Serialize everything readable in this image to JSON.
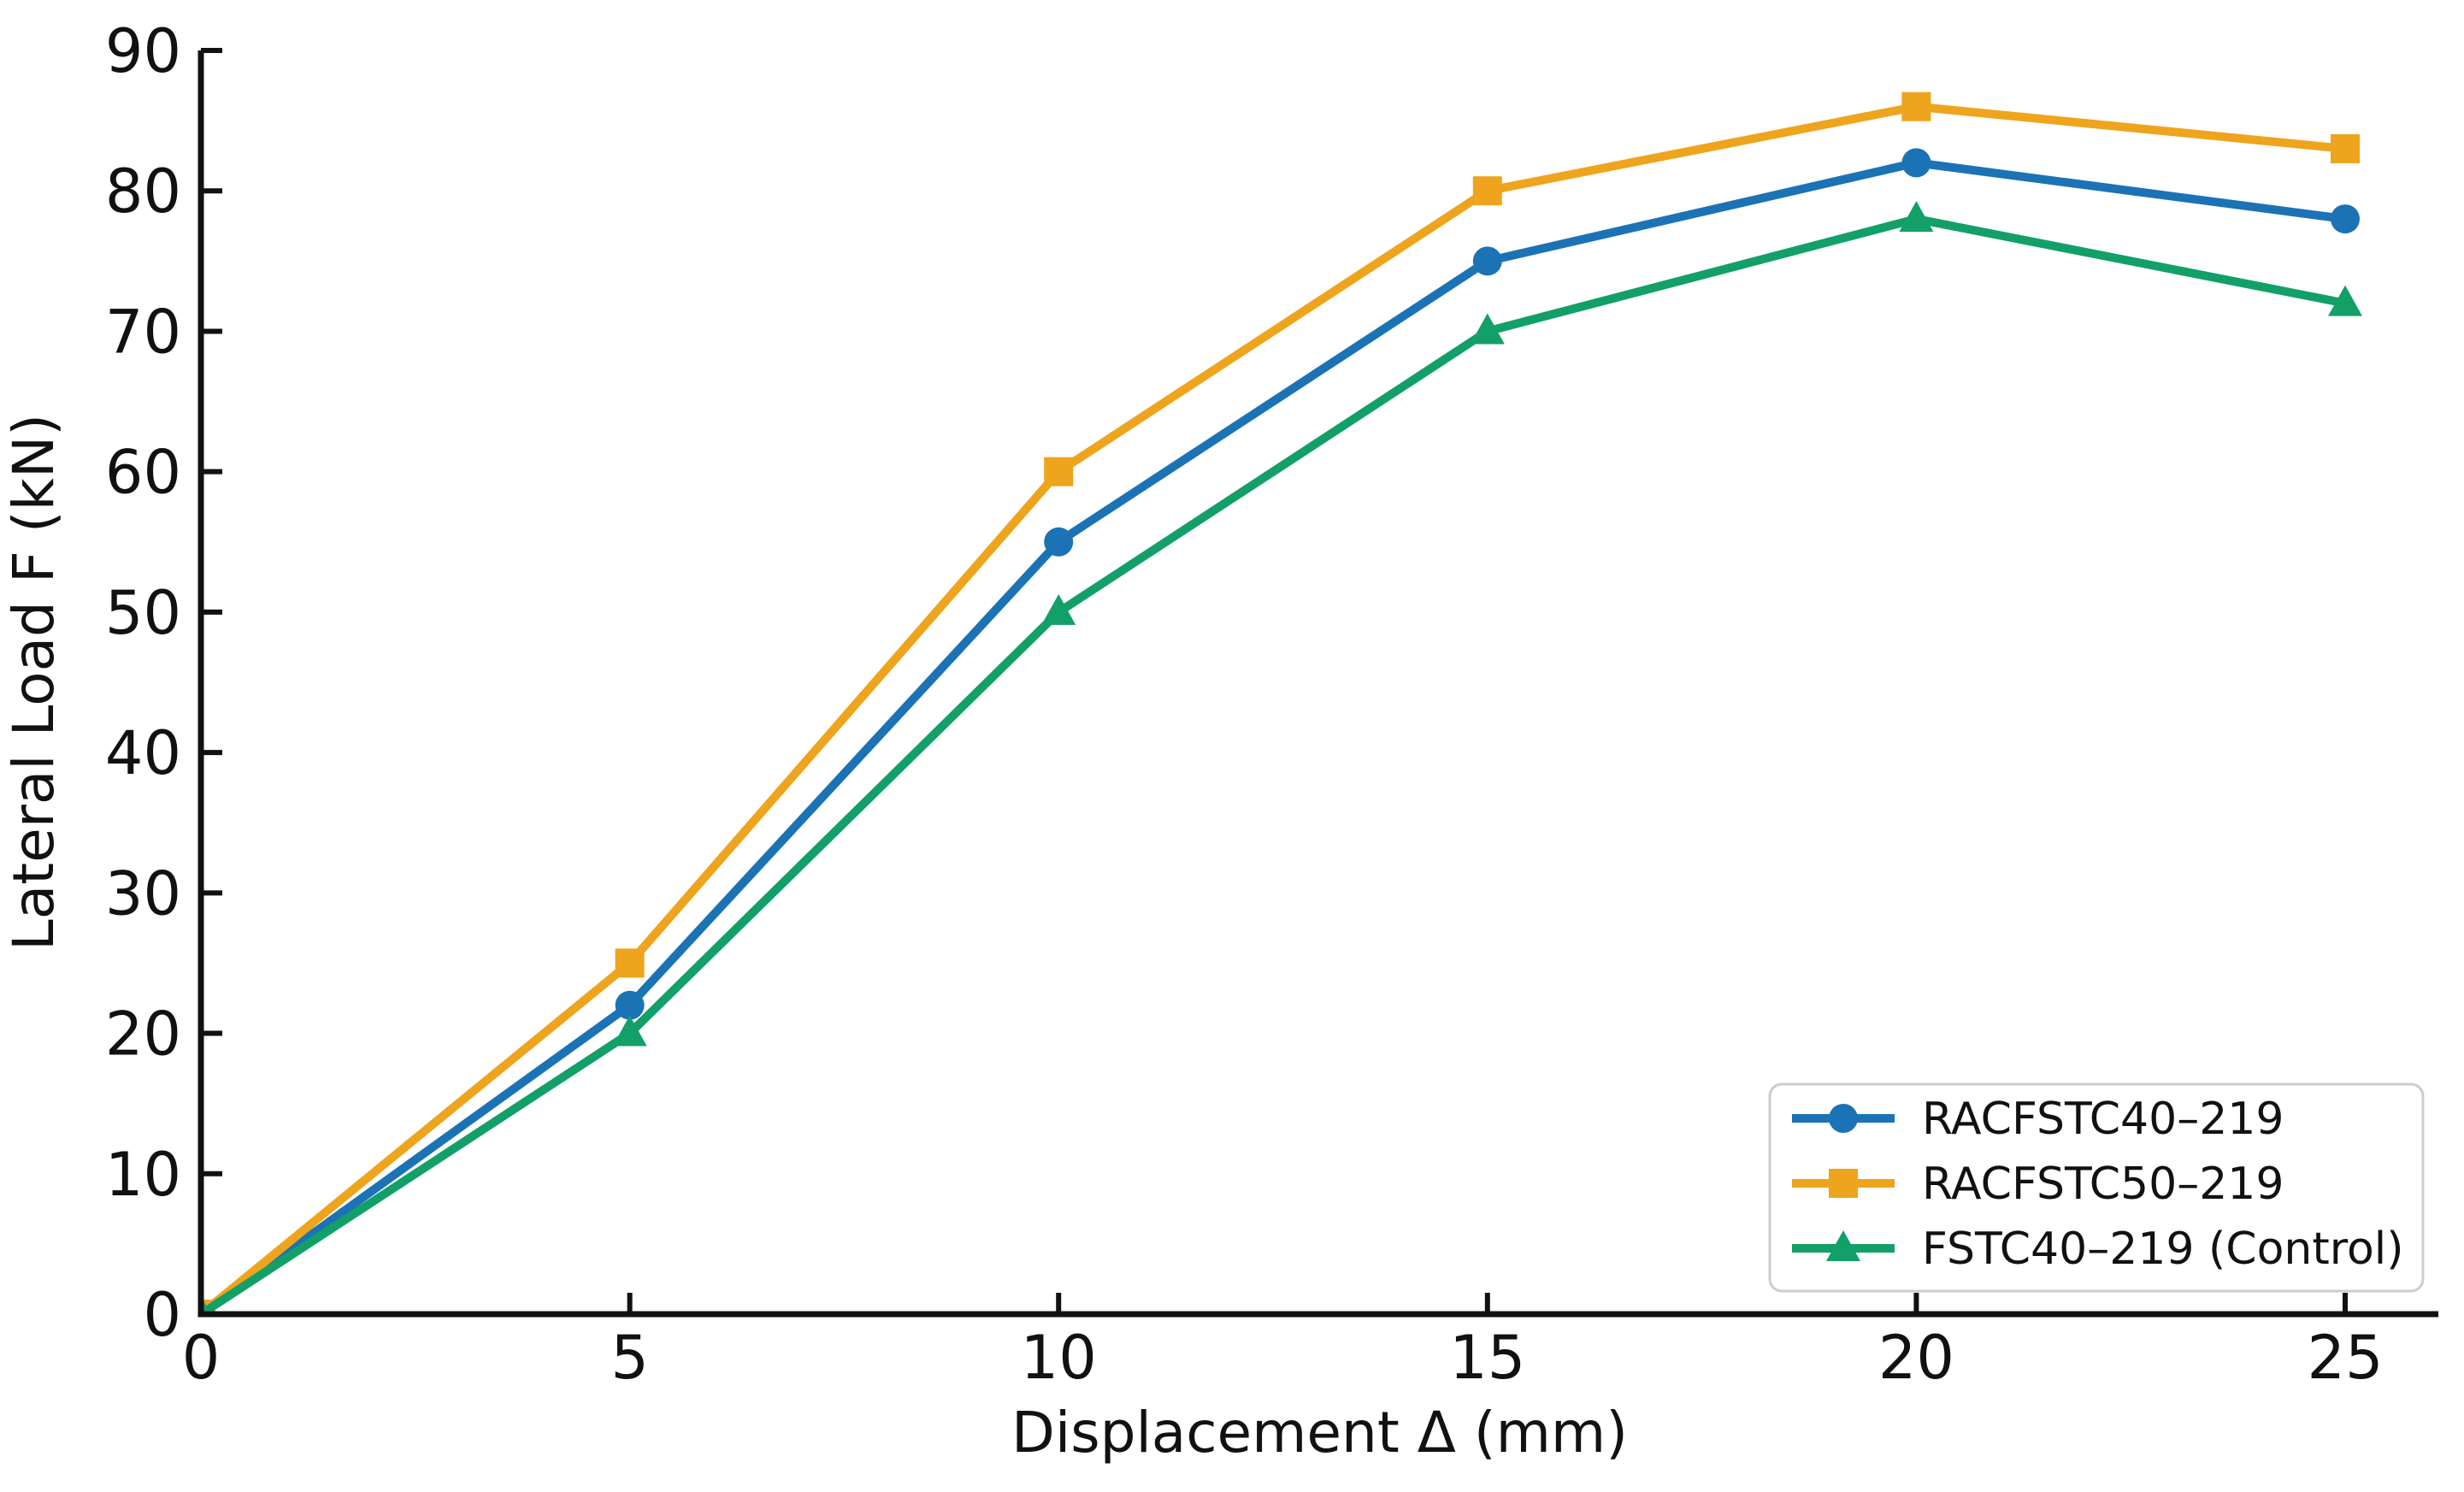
{
  "page": {
    "background": "#ffffff",
    "text_color": "#111111"
  },
  "chart_data": {
    "type": "line",
    "title": "",
    "xlabel": "Displacement Δ (mm)",
    "ylabel": "Lateral Load F (kN)",
    "x": [
      0,
      5,
      10,
      15,
      20,
      25
    ],
    "xtick_labels": [
      "0",
      "5",
      "10",
      "15",
      "20",
      "25"
    ],
    "ytick_values": [
      0,
      10,
      20,
      30,
      40,
      50,
      60,
      70,
      80,
      90
    ],
    "ytick_labels": [
      "0",
      "10",
      "20",
      "30",
      "40",
      "50",
      "60",
      "70",
      "80",
      "90"
    ],
    "xlim": [
      0,
      26.1
    ],
    "ylim": [
      0,
      90
    ],
    "grid": false,
    "legend_position": "lower-right",
    "axis_color": "#111111",
    "legend_border_color": "#cdcdcd",
    "legend_background": "#ffffff",
    "series": [
      {
        "name": "RACFSTC40–219",
        "marker": "circle",
        "color": "#1b73b5",
        "values": [
          0,
          22,
          55,
          75,
          82,
          78
        ]
      },
      {
        "name": "RACFSTC50–219",
        "marker": "square",
        "color": "#eea41c",
        "values": [
          0,
          25,
          60,
          80,
          86,
          83
        ]
      },
      {
        "name": "FSTC40–219 (Control)",
        "marker": "triangle",
        "color": "#12a068",
        "values": [
          0,
          20,
          50,
          70,
          78,
          72
        ]
      }
    ]
  }
}
